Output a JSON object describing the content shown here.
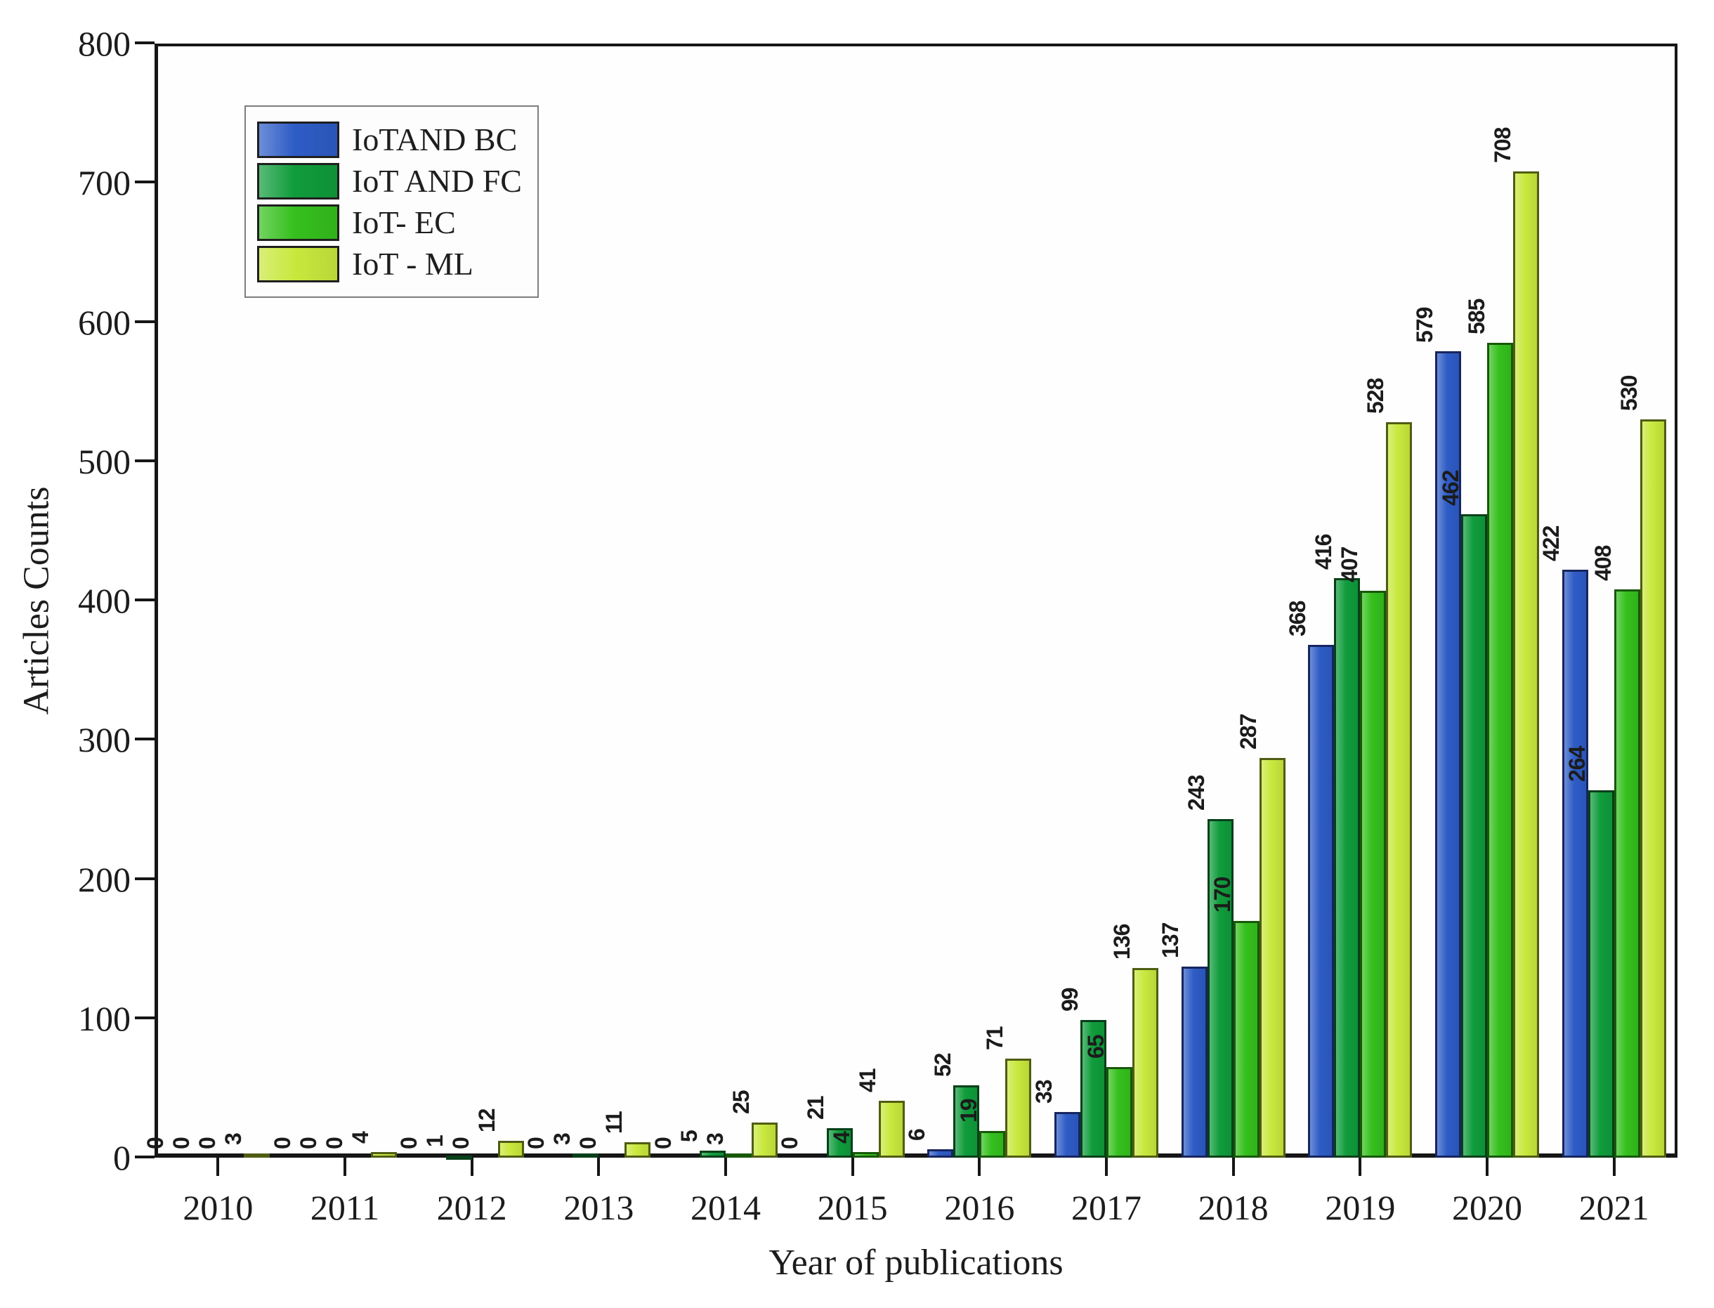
{
  "chart_data": {
    "type": "bar",
    "title": "",
    "xlabel": "Year of publications",
    "ylabel": "Articles Counts",
    "categories": [
      "2010",
      "2011",
      "2012",
      "2013",
      "2014",
      "2015",
      "2016",
      "2017",
      "2018",
      "2019",
      "2020",
      "2021"
    ],
    "series": [
      {
        "name": "IoTAND BC",
        "color": "#2e5cc6",
        "border": "#17255f",
        "values": [
          0,
          0,
          0,
          0,
          0,
          0,
          6,
          33,
          137,
          368,
          579,
          422
        ]
      },
      {
        "name": "IoT AND FC",
        "color": "#109c3c",
        "border": "#073f19",
        "values": [
          0,
          0,
          1,
          3,
          5,
          21,
          52,
          99,
          243,
          416,
          462,
          264
        ]
      },
      {
        "name": "IoT- EC",
        "color": "#35c01d",
        "border": "#175808",
        "values": [
          0,
          0,
          0,
          0,
          3,
          4,
          19,
          65,
          170,
          407,
          585,
          408
        ]
      },
      {
        "name": "IoT - ML",
        "color": "#c9e83d",
        "border": "#4f5d13",
        "values": [
          3,
          4,
          12,
          11,
          25,
          41,
          71,
          136,
          287,
          528,
          708,
          530
        ]
      }
    ],
    "ylim": [
      0,
      800
    ],
    "ytick_step": 100,
    "grid": false,
    "legend_position": "top-left",
    "bar_value_labels": true,
    "value_label_rotation_deg": -90,
    "axis_color": "#161616"
  }
}
